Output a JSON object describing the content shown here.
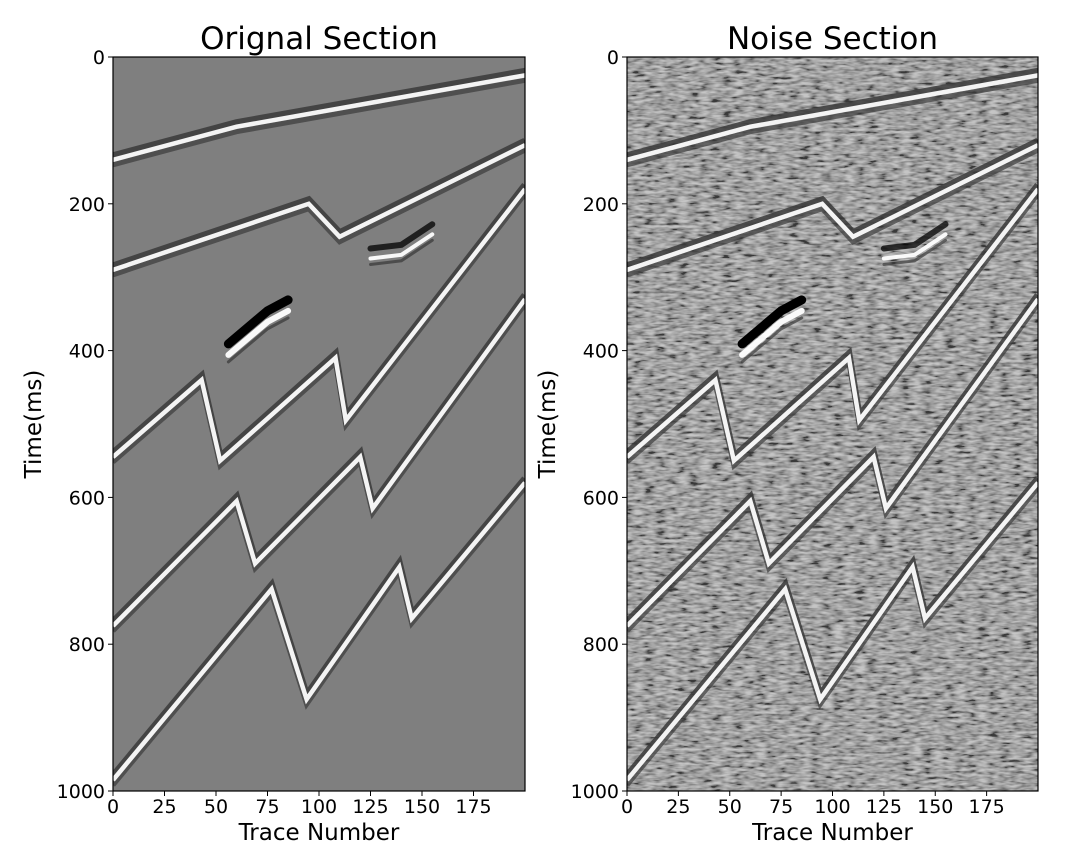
{
  "chart_data": [
    {
      "type": "heatmap",
      "title": "Orignal Section",
      "xlabel": "Trace Number",
      "ylabel": "Time(ms)",
      "xlim": [
        0,
        200
      ],
      "ylim": [
        1000,
        0
      ],
      "xticks": [
        0,
        25,
        50,
        75,
        100,
        125,
        150,
        175
      ],
      "yticks": [
        0,
        200,
        400,
        600,
        800,
        1000
      ],
      "colormap": "gray",
      "noise": false,
      "background_color": "#7f7f7f",
      "reflectors": [
        {
          "name": "",
          "points": [
            [
              0,
              140
            ],
            [
              60,
              95
            ],
            [
              200,
              25
            ]
          ]
        },
        {
          "name": "",
          "points": [
            [
              0,
              290
            ],
            [
              95,
              200
            ],
            [
              110,
              245
            ],
            [
              200,
              120
            ]
          ]
        },
        {
          "name": "",
          "points": [
            [
              0,
              545
            ],
            [
              43,
              440
            ],
            [
              52,
              550
            ],
            [
              108,
              410
            ],
            [
              113,
              495
            ],
            [
              200,
              180
            ]
          ]
        },
        {
          "name": "",
          "points": [
            [
              0,
              775
            ],
            [
              60,
              605
            ],
            [
              69,
              690
            ],
            [
              120,
              545
            ],
            [
              126,
              615
            ],
            [
              200,
              330
            ]
          ]
        },
        {
          "name": "",
          "points": [
            [
              0,
              985
            ],
            [
              77,
              725
            ],
            [
              94,
              875
            ],
            [
              139,
              695
            ],
            [
              145,
              765
            ],
            [
              200,
              580
            ]
          ]
        }
      ],
      "anomalies": [
        {
          "name": "",
          "points": [
            [
              56,
              395
            ],
            [
              75,
              350
            ],
            [
              85,
              335
            ]
          ]
        },
        {
          "name": "",
          "points": [
            [
              125,
              265
            ],
            [
              140,
              260
            ],
            [
              155,
              232
            ]
          ]
        }
      ]
    },
    {
      "type": "heatmap",
      "title": "Noise Section",
      "xlabel": "Trace Number",
      "ylabel": "Time(ms)",
      "xlim": [
        0,
        200
      ],
      "ylim": [
        1000,
        0
      ],
      "xticks": [
        0,
        25,
        50,
        75,
        100,
        125,
        150,
        175
      ],
      "yticks": [
        0,
        200,
        400,
        600,
        800,
        1000
      ],
      "colormap": "gray",
      "noise": true,
      "background_color": "#7f7f7f",
      "reflectors": [
        {
          "name": "",
          "points": [
            [
              0,
              140
            ],
            [
              60,
              95
            ],
            [
              200,
              25
            ]
          ]
        },
        {
          "name": "",
          "points": [
            [
              0,
              290
            ],
            [
              95,
              200
            ],
            [
              110,
              245
            ],
            [
              200,
              120
            ]
          ]
        },
        {
          "name": "",
          "points": [
            [
              0,
              545
            ],
            [
              43,
              440
            ],
            [
              52,
              550
            ],
            [
              108,
              410
            ],
            [
              113,
              495
            ],
            [
              200,
              180
            ]
          ]
        },
        {
          "name": "",
          "points": [
            [
              0,
              775
            ],
            [
              60,
              605
            ],
            [
              69,
              690
            ],
            [
              120,
              545
            ],
            [
              126,
              615
            ],
            [
              200,
              330
            ]
          ]
        },
        {
          "name": "",
          "points": [
            [
              0,
              985
            ],
            [
              77,
              725
            ],
            [
              94,
              875
            ],
            [
              139,
              695
            ],
            [
              145,
              765
            ],
            [
              200,
              580
            ]
          ]
        }
      ],
      "anomalies": [
        {
          "name": "",
          "points": [
            [
              56,
              395
            ],
            [
              75,
              350
            ],
            [
              85,
              335
            ]
          ]
        },
        {
          "name": "",
          "points": [
            [
              125,
              265
            ],
            [
              140,
              260
            ],
            [
              155,
              232
            ]
          ]
        }
      ]
    }
  ]
}
